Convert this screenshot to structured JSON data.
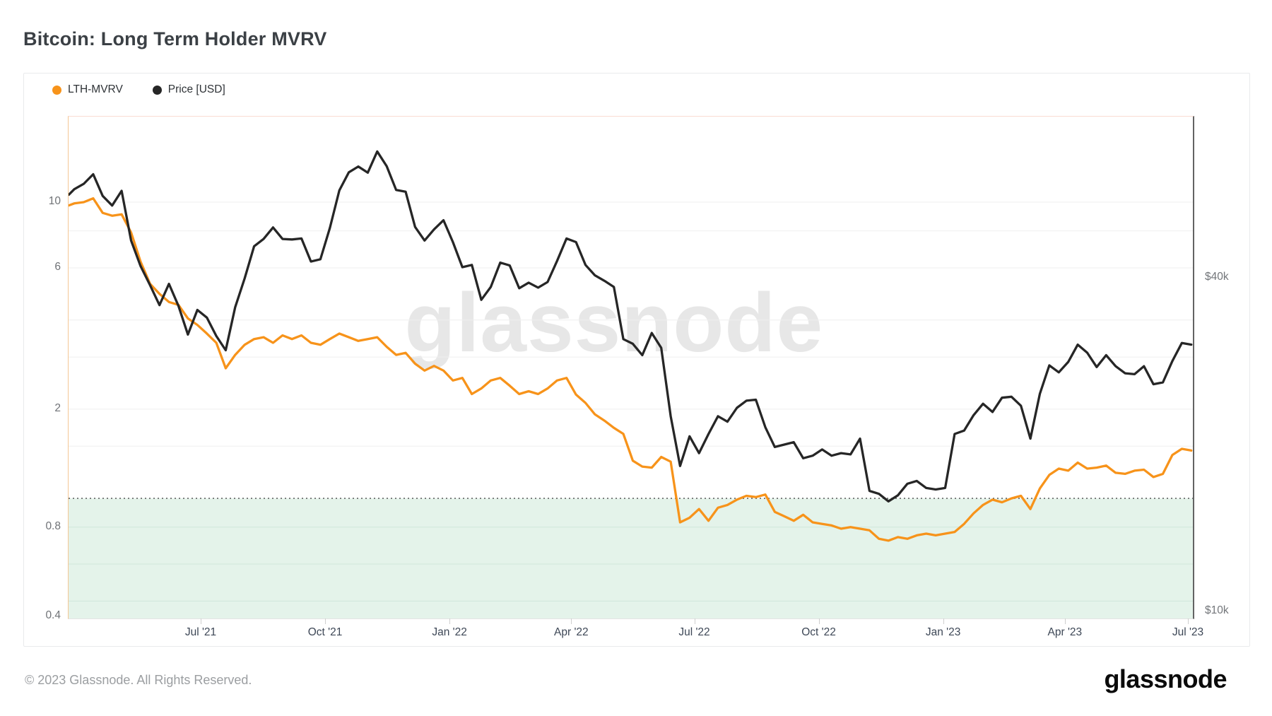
{
  "page": {
    "title": "Bitcoin: Long Term Holder MVRV",
    "watermark": "glassnode",
    "footer_copyright": "© 2023 Glassnode. All Rights Reserved.",
    "brand_logo": "glassnode"
  },
  "legend": [
    {
      "label": "LTH-MVRV",
      "color": "#F7931A"
    },
    {
      "label": "Price [USD]",
      "color": "#262626"
    }
  ],
  "chart_data": {
    "type": "line",
    "title": "Bitcoin: Long Term Holder MVRV",
    "x_scale": "time",
    "legend_position": "top-left",
    "grid": true,
    "x": [
      "2021-03-25",
      "2021-03-29",
      "2021-04-05",
      "2021-04-12",
      "2021-04-19",
      "2021-04-26",
      "2021-05-03",
      "2021-05-10",
      "2021-05-17",
      "2021-05-24",
      "2021-05-31",
      "2021-06-07",
      "2021-06-14",
      "2021-06-21",
      "2021-06-28",
      "2021-07-05",
      "2021-07-12",
      "2021-07-19",
      "2021-07-26",
      "2021-08-02",
      "2021-08-09",
      "2021-08-16",
      "2021-08-23",
      "2021-08-30",
      "2021-09-06",
      "2021-09-13",
      "2021-09-20",
      "2021-09-27",
      "2021-10-04",
      "2021-10-11",
      "2021-10-18",
      "2021-10-25",
      "2021-11-01",
      "2021-11-08",
      "2021-11-15",
      "2021-11-22",
      "2021-11-29",
      "2021-12-06",
      "2021-12-13",
      "2021-12-20",
      "2021-12-27",
      "2022-01-03",
      "2022-01-10",
      "2022-01-17",
      "2022-01-24",
      "2022-01-31",
      "2022-02-07",
      "2022-02-14",
      "2022-02-21",
      "2022-02-28",
      "2022-03-07",
      "2022-03-14",
      "2022-03-21",
      "2022-03-28",
      "2022-04-04",
      "2022-04-11",
      "2022-04-18",
      "2022-04-25",
      "2022-05-02",
      "2022-05-09",
      "2022-05-16",
      "2022-05-23",
      "2022-05-30",
      "2022-06-06",
      "2022-06-13",
      "2022-06-20",
      "2022-06-27",
      "2022-07-04",
      "2022-07-11",
      "2022-07-18",
      "2022-07-25",
      "2022-08-01",
      "2022-08-08",
      "2022-08-15",
      "2022-08-22",
      "2022-08-29",
      "2022-09-05",
      "2022-09-12",
      "2022-09-19",
      "2022-09-26",
      "2022-10-03",
      "2022-10-10",
      "2022-10-17",
      "2022-10-24",
      "2022-10-31",
      "2022-11-07",
      "2022-11-14",
      "2022-11-21",
      "2022-11-28",
      "2022-12-05",
      "2022-12-12",
      "2022-12-19",
      "2022-12-26",
      "2023-01-02",
      "2023-01-09",
      "2023-01-16",
      "2023-01-23",
      "2023-01-30",
      "2023-02-06",
      "2023-02-13",
      "2023-02-20",
      "2023-02-27",
      "2023-03-06",
      "2023-03-13",
      "2023-03-20",
      "2023-03-27",
      "2023-04-03",
      "2023-04-10",
      "2023-04-17",
      "2023-04-24",
      "2023-05-01",
      "2023-05-08",
      "2023-05-15",
      "2023-05-22",
      "2023-05-29",
      "2023-06-05",
      "2023-06-12",
      "2023-06-19",
      "2023-06-26",
      "2023-07-03"
    ],
    "series": [
      {
        "name": "LTH-MVRV",
        "axis": "left",
        "color": "#F7931A",
        "values": [
          9.75,
          9.9,
          10.0,
          10.3,
          9.2,
          9.0,
          9.1,
          7.9,
          6.3,
          5.3,
          4.9,
          4.6,
          4.5,
          4.05,
          3.85,
          3.6,
          3.35,
          2.75,
          3.05,
          3.3,
          3.45,
          3.5,
          3.35,
          3.55,
          3.45,
          3.55,
          3.35,
          3.3,
          3.45,
          3.6,
          3.5,
          3.4,
          3.45,
          3.5,
          3.25,
          3.05,
          3.1,
          2.85,
          2.7,
          2.8,
          2.7,
          2.5,
          2.55,
          2.25,
          2.35,
          2.5,
          2.55,
          2.4,
          2.25,
          2.3,
          2.25,
          2.35,
          2.5,
          2.55,
          2.24,
          2.1,
          1.92,
          1.83,
          1.73,
          1.65,
          1.34,
          1.28,
          1.27,
          1.38,
          1.33,
          0.83,
          0.86,
          0.92,
          0.84,
          0.93,
          0.95,
          0.99,
          1.02,
          1.01,
          1.03,
          0.9,
          0.87,
          0.84,
          0.88,
          0.83,
          0.82,
          0.81,
          0.79,
          0.8,
          0.79,
          0.78,
          0.73,
          0.72,
          0.74,
          0.73,
          0.75,
          0.76,
          0.75,
          0.76,
          0.77,
          0.82,
          0.89,
          0.95,
          0.99,
          0.97,
          1.0,
          1.02,
          0.92,
          1.08,
          1.2,
          1.26,
          1.24,
          1.32,
          1.26,
          1.27,
          1.29,
          1.22,
          1.21,
          1.24,
          1.25,
          1.18,
          1.21,
          1.4,
          1.47,
          1.45
        ]
      },
      {
        "name": "Price [USD]",
        "axis": "right",
        "color": "#262626",
        "values": [
          56500,
          57800,
          59100,
          61500,
          56200,
          54000,
          57400,
          46700,
          42000,
          38800,
          35700,
          39000,
          35600,
          31600,
          35000,
          33900,
          31400,
          29600,
          35400,
          39900,
          45600,
          47000,
          49300,
          47000,
          46900,
          47100,
          42800,
          43200,
          49200,
          57500,
          62000,
          63500,
          61900,
          67600,
          63600,
          57600,
          57200,
          49400,
          46700,
          48900,
          50800,
          46400,
          41800,
          42200,
          36500,
          38500,
          42600,
          42100,
          38300,
          39200,
          38400,
          39300,
          42900,
          47100,
          46400,
          42200,
          40400,
          39500,
          38500,
          31000,
          30400,
          29000,
          31800,
          29900,
          22500,
          18300,
          20700,
          19300,
          20900,
          22500,
          22000,
          23300,
          24000,
          24100,
          21500,
          19800,
          20000,
          20200,
          18900,
          19100,
          19600,
          19100,
          19300,
          19200,
          20500,
          16500,
          16300,
          15800,
          16200,
          17000,
          17200,
          16700,
          16600,
          16700,
          20900,
          21200,
          22600,
          23700,
          22900,
          24300,
          24400,
          23500,
          20500,
          24700,
          27800,
          27000,
          28200,
          30300,
          29300,
          27600,
          29000,
          27700,
          26900,
          26800,
          27700,
          25700,
          25900,
          28300,
          30500,
          30300
        ]
      }
    ],
    "axes": {
      "left": {
        "scale": "log",
        "tick_labels": [
          "10",
          "6",
          "2",
          "0.8",
          "0.4"
        ],
        "tick_values": [
          10,
          6,
          2,
          0.8,
          0.4
        ],
        "grid_values": [
          10,
          8,
          6,
          4,
          3,
          2,
          1.5,
          1,
          0.8,
          0.6,
          0.45
        ]
      },
      "right": {
        "scale": "log",
        "tick_labels": [
          "$40k",
          "$10k"
        ],
        "tick_values": [
          40000,
          10000
        ]
      },
      "x": {
        "ticks": [
          {
            "label": "Jul '21",
            "date": "2021-07-01"
          },
          {
            "label": "Oct '21",
            "date": "2021-10-01"
          },
          {
            "label": "Jan '22",
            "date": "2022-01-01"
          },
          {
            "label": "Apr '22",
            "date": "2022-04-01"
          },
          {
            "label": "Jul '22",
            "date": "2022-07-01"
          },
          {
            "label": "Oct '22",
            "date": "2022-10-01"
          },
          {
            "label": "Jan '23",
            "date": "2023-01-01"
          },
          {
            "label": "Apr '23",
            "date": "2023-04-01"
          },
          {
            "label": "Jul '23",
            "date": "2023-07-01"
          }
        ]
      }
    },
    "annotations": {
      "breakeven_line": {
        "value": 1,
        "style": "dotted",
        "color": "#4a4a4a"
      },
      "underwater_zone": {
        "below": 1,
        "color": "#e4f3ea"
      }
    }
  }
}
